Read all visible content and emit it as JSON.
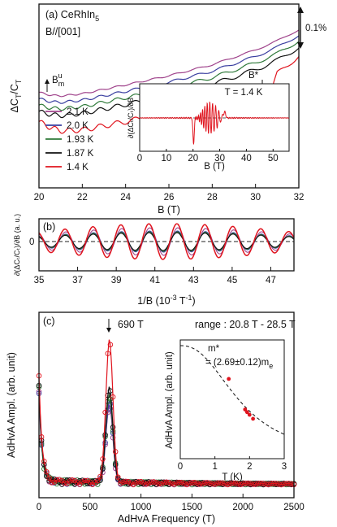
{
  "colors": {
    "t21": "#a0448c",
    "t20": "#3a3fa0",
    "t193": "#2f7a3a",
    "t187": "#111111",
    "t14": "#e0141e",
    "axis": "#111111",
    "dash": "#222222"
  },
  "chart_data": [
    {
      "id": "a",
      "type": "line",
      "panel_label": "(a) CeRhIn",
      "panel_label_sub": "5",
      "field_dir": "B//[001]",
      "xlabel": "B (T)",
      "ylabel_main": "ΔC",
      "ylabel_sub1": "T",
      "ylabel_mid": "/C",
      "ylabel_sub2": "T",
      "xlim": [
        20,
        32
      ],
      "xticks": [
        "20",
        "22",
        "24",
        "26",
        "28",
        "30",
        "32"
      ],
      "scale_bar": "0.1%",
      "annotations": {
        "b_star": "B*",
        "bm_main": "B",
        "bm_sup": "u",
        "bm_sub": "m"
      },
      "legend": [
        "2.1 K",
        "2.0 K",
        "1.93 K",
        "1.87 K",
        "1.4 K"
      ],
      "series": [
        {
          "name": "2.1 K",
          "color": "#a0448c",
          "x": [
            20,
            20.5,
            21,
            22,
            24,
            26,
            28,
            30,
            31,
            32
          ],
          "y": [
            0.52,
            0.505,
            0.5,
            0.512,
            0.56,
            0.61,
            0.67,
            0.75,
            0.8,
            0.86
          ]
        },
        {
          "name": "2.0 K",
          "color": "#3a3fa0",
          "x": [
            20,
            20.5,
            21,
            22,
            24,
            26,
            28,
            30,
            31,
            32
          ],
          "y": [
            0.485,
            0.47,
            0.465,
            0.477,
            0.525,
            0.575,
            0.635,
            0.715,
            0.765,
            0.83
          ]
        },
        {
          "name": "1.93 K",
          "color": "#2f7a3a",
          "x": [
            20,
            20.5,
            21,
            22,
            24,
            26,
            28,
            30,
            31,
            32
          ],
          "y": [
            0.45,
            0.435,
            0.43,
            0.442,
            0.49,
            0.54,
            0.6,
            0.68,
            0.73,
            0.8
          ]
        },
        {
          "name": "1.87 K",
          "color": "#111111",
          "x": [
            20,
            20.5,
            21,
            22,
            24,
            26,
            28,
            30,
            31,
            32
          ],
          "y": [
            0.415,
            0.4,
            0.393,
            0.405,
            0.453,
            0.503,
            0.563,
            0.643,
            0.693,
            0.765
          ]
        },
        {
          "name": "1.4 K",
          "color": "#e0141e",
          "x": [
            20,
            20.5,
            21,
            22,
            24,
            26,
            28,
            30,
            30.5,
            31,
            32
          ],
          "y": [
            0.36,
            0.33,
            0.31,
            0.315,
            0.36,
            0.41,
            0.47,
            0.55,
            0.45,
            0.62,
            0.72
          ]
        }
      ],
      "inset": {
        "type": "line",
        "label": "T = 1.4 K",
        "xlabel": "B (T)",
        "ylabel": "∂(ΔCₜ/Cₜ)/∂B",
        "xlim": [
          0,
          56
        ],
        "xticks": [
          "0",
          "10",
          "20",
          "30",
          "40",
          "50"
        ]
      }
    },
    {
      "id": "b",
      "type": "line",
      "panel_label": "(b)",
      "xlabel_main": "1/B (10",
      "xlabel_sup1": "-3",
      "xlabel_mid": " T",
      "xlabel_sup2": "-1",
      "xlabel_end": ")",
      "ylabel": "∂(ΔCₜ/Cₜ)/∂B (a. u.)",
      "xlim": [
        35,
        48.2
      ],
      "xticks": [
        "35",
        "37",
        "39",
        "41",
        "43",
        "45",
        "47"
      ],
      "ytick": "0"
    },
    {
      "id": "c",
      "type": "scatter",
      "panel_label": "(c)",
      "peak_label": "690 T",
      "range_label": "range : 20.8 T - 28.5 T",
      "xlabel": "AdHvA Frequency (T)",
      "ylabel": "AdHvA Ampl. (arb. unit)",
      "xlim": [
        0,
        2500
      ],
      "xticks": [
        "0",
        "500",
        "1000",
        "1500",
        "2000",
        "2500"
      ],
      "peaks": [
        {
          "name": "1.4 K",
          "color": "#e0141e",
          "amplitude": 1.0
        },
        {
          "name": "1.87 K",
          "color": "#111111",
          "amplitude": 0.66
        },
        {
          "name": "1.93 K",
          "color": "#2f7a3a",
          "amplitude": 0.62
        },
        {
          "name": "2.0 K",
          "color": "#3a3fa0",
          "amplitude": 0.57
        },
        {
          "name": "2.1 K",
          "color": "#a0448c",
          "amplitude": 0.53
        }
      ],
      "peak_frequency": 690,
      "inset": {
        "type": "scatter",
        "ylabel": "AdHvA Ampl. (arb. unit)",
        "xlabel": "T (K)",
        "xlim": [
          0,
          3
        ],
        "xticks": [
          "0",
          "1",
          "2",
          "3"
        ],
        "fit_label_1": "m*",
        "fit_label_2": "= (2.69±0.12)m",
        "fit_label_sub": "e",
        "points": {
          "x": [
            1.4,
            1.87,
            1.93,
            2.0,
            2.1
          ],
          "y": [
            0.6,
            0.37,
            0.35,
            0.33,
            0.3
          ]
        }
      }
    }
  ]
}
